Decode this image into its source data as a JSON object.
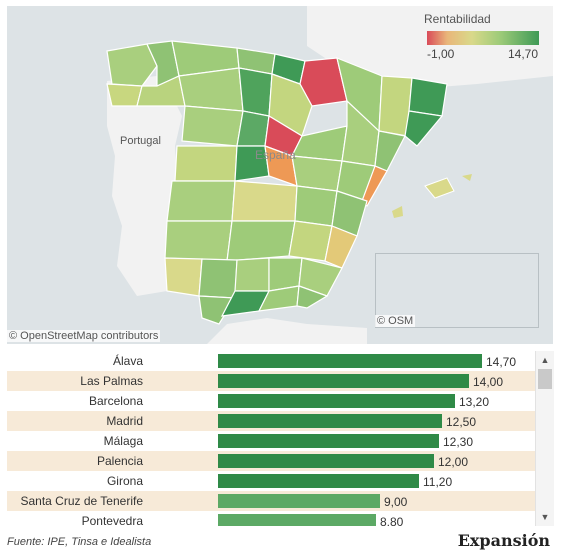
{
  "legend": {
    "title": "Rentabilidad",
    "min_label": "-1,00",
    "max_label": "14,70"
  },
  "map": {
    "labels": {
      "portugal": "Portugal",
      "espana": "España"
    },
    "attribution": "© OpenStreetMap contributors",
    "attribution_inset": "© OSM"
  },
  "colors": {
    "low": "#d94b59",
    "orange": "#ee9955",
    "mid": "#d9d98a",
    "high": "#3f9a56",
    "bar_dark": "#2f8a47",
    "bar_light": "#5ca965",
    "stripe": "#f7ead8",
    "sea": "#dde3e6",
    "land_other": "#ffffff"
  },
  "chart_data": {
    "type": "bar",
    "orientation": "horizontal",
    "categories": [
      "Álava",
      "Las Palmas",
      "Barcelona",
      "Madrid",
      "Málaga",
      "Palencia",
      "Girona",
      "Santa Cruz de Tenerife",
      "Pontevedra"
    ],
    "value_labels": [
      "14,70",
      "14,00",
      "13,20",
      "12,50",
      "12,30",
      "12,00",
      "11,20",
      "9,00",
      "8,80"
    ],
    "values": [
      14.7,
      14.0,
      13.2,
      12.5,
      12.3,
      12.0,
      11.2,
      9.0,
      8.8
    ],
    "xlim": [
      0,
      14.7
    ]
  },
  "footer": {
    "source": "Fuente: IPE, Tinsa e Idealista",
    "brand": "Expansión"
  }
}
